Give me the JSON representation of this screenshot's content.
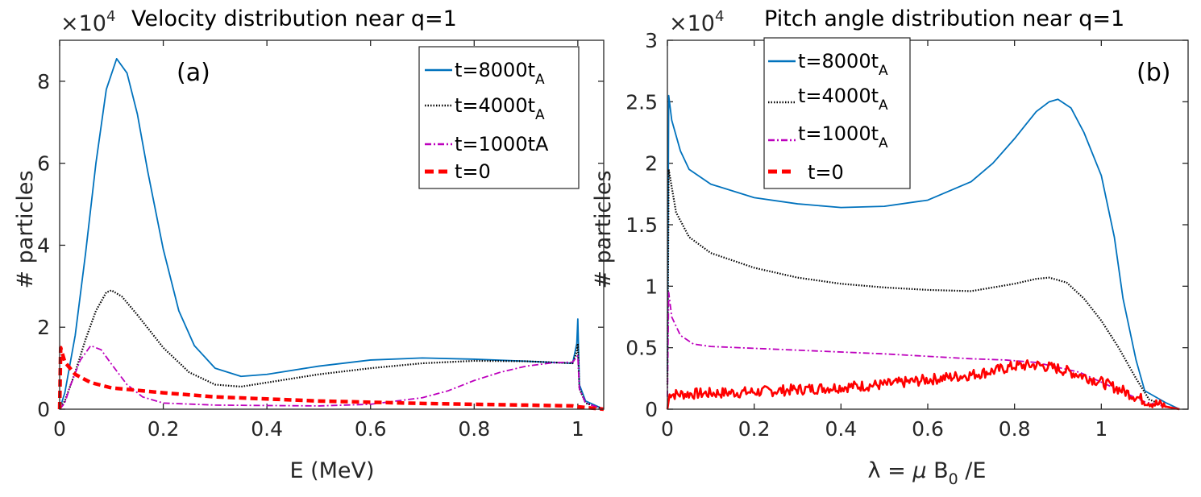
{
  "chart_data": [
    {
      "id": "a",
      "type": "line",
      "title": "Velocity distribution near q=1",
      "panel_label": "(a)",
      "multiplier": "×10",
      "multiplier_exp": "4",
      "xlabel": "E (MeV)",
      "ylabel": "# particles",
      "xlim": [
        0,
        1.05
      ],
      "ylim": [
        0,
        9
      ],
      "xticks": [
        0,
        0.2,
        0.4,
        0.6,
        0.8,
        1
      ],
      "xtick_labels": [
        "0",
        "0.2",
        "0.4",
        "0.6",
        "0.8",
        "1"
      ],
      "yticks": [
        0,
        2,
        4,
        6,
        8
      ],
      "ytick_labels": [
        "0",
        "2",
        "4",
        "6",
        "8"
      ],
      "legend_position": "top-right",
      "series": [
        {
          "name": "t=8000t",
          "sub": "A",
          "color": "#0072BD",
          "style": "solid",
          "points": [
            [
              0,
              0
            ],
            [
              0.01,
              0.4
            ],
            [
              0.03,
              1.8
            ],
            [
              0.05,
              3.8
            ],
            [
              0.07,
              6.0
            ],
            [
              0.09,
              7.8
            ],
            [
              0.11,
              8.55
            ],
            [
              0.13,
              8.2
            ],
            [
              0.15,
              7.2
            ],
            [
              0.17,
              5.8
            ],
            [
              0.2,
              3.9
            ],
            [
              0.23,
              2.4
            ],
            [
              0.26,
              1.55
            ],
            [
              0.3,
              1.0
            ],
            [
              0.35,
              0.8
            ],
            [
              0.4,
              0.85
            ],
            [
              0.5,
              1.05
            ],
            [
              0.6,
              1.2
            ],
            [
              0.7,
              1.25
            ],
            [
              0.8,
              1.22
            ],
            [
              0.9,
              1.17
            ],
            [
              0.99,
              1.12
            ],
            [
              0.998,
              1.6
            ],
            [
              1.0,
              2.2
            ],
            [
              1.003,
              0.6
            ],
            [
              1.015,
              0.2
            ],
            [
              1.05,
              0
            ]
          ]
        },
        {
          "name": "t=4000t",
          "sub": "A",
          "color": "#000000",
          "style": "dotted",
          "points": [
            [
              0,
              0
            ],
            [
              0.01,
              0.2
            ],
            [
              0.03,
              0.9
            ],
            [
              0.05,
              1.7
            ],
            [
              0.07,
              2.4
            ],
            [
              0.09,
              2.85
            ],
            [
              0.1,
              2.9
            ],
            [
              0.12,
              2.75
            ],
            [
              0.15,
              2.3
            ],
            [
              0.2,
              1.5
            ],
            [
              0.25,
              0.9
            ],
            [
              0.3,
              0.6
            ],
            [
              0.35,
              0.55
            ],
            [
              0.4,
              0.65
            ],
            [
              0.5,
              0.85
            ],
            [
              0.6,
              1.0
            ],
            [
              0.7,
              1.12
            ],
            [
              0.8,
              1.18
            ],
            [
              0.9,
              1.17
            ],
            [
              0.99,
              1.12
            ],
            [
              0.998,
              1.4
            ],
            [
              1.0,
              1.6
            ],
            [
              1.003,
              0.5
            ],
            [
              1.015,
              0.15
            ],
            [
              1.05,
              0
            ]
          ]
        },
        {
          "name": "t=1000tA",
          "sub": "",
          "color": "#BD00BD",
          "style": "dashdot",
          "points": [
            [
              0,
              0
            ],
            [
              0.01,
              0.15
            ],
            [
              0.02,
              0.55
            ],
            [
              0.04,
              1.2
            ],
            [
              0.06,
              1.55
            ],
            [
              0.08,
              1.45
            ],
            [
              0.1,
              1.1
            ],
            [
              0.13,
              0.6
            ],
            [
              0.16,
              0.3
            ],
            [
              0.2,
              0.15
            ],
            [
              0.3,
              0.1
            ],
            [
              0.5,
              0.08
            ],
            [
              0.6,
              0.12
            ],
            [
              0.7,
              0.28
            ],
            [
              0.75,
              0.45
            ],
            [
              0.8,
              0.7
            ],
            [
              0.85,
              0.9
            ],
            [
              0.9,
              1.05
            ],
            [
              0.95,
              1.13
            ],
            [
              0.99,
              1.15
            ],
            [
              1.0,
              1.3
            ],
            [
              1.003,
              0.5
            ],
            [
              1.015,
              0.15
            ],
            [
              1.05,
              0
            ]
          ]
        },
        {
          "name": "t=0",
          "sub": "",
          "color": "#FF0000",
          "style": "dashed",
          "points": [
            [
              0,
              0
            ],
            [
              0.002,
              1.5
            ],
            [
              0.01,
              1.15
            ],
            [
              0.03,
              0.85
            ],
            [
              0.06,
              0.65
            ],
            [
              0.1,
              0.52
            ],
            [
              0.2,
              0.4
            ],
            [
              0.3,
              0.3
            ],
            [
              0.5,
              0.2
            ],
            [
              0.7,
              0.14
            ],
            [
              0.9,
              0.1
            ],
            [
              0.99,
              0.08
            ],
            [
              1.0,
              0.06
            ],
            [
              1.05,
              0
            ]
          ]
        }
      ]
    },
    {
      "id": "b",
      "type": "line",
      "title": "Pitch angle distribution near q=1",
      "panel_label": "(b)",
      "multiplier": "×10",
      "multiplier_exp": "4",
      "xlabel_pre": "λ = ",
      "xlabel_mu": "μ",
      "xlabel_mid": " B",
      "xlabel_sub": "0",
      "xlabel_post": " /E",
      "ylabel": "# particles",
      "xlim": [
        0,
        1.2
      ],
      "ylim": [
        0,
        3
      ],
      "xticks": [
        0,
        0.2,
        0.4,
        0.6,
        0.8,
        1
      ],
      "xtick_labels": [
        "0",
        "0.2",
        "0.4",
        "0.6",
        "0.8",
        "1"
      ],
      "yticks": [
        0,
        0.5,
        1,
        1.5,
        2,
        2.5,
        3
      ],
      "ytick_labels": [
        "0",
        "0.5",
        "1",
        "1.5",
        "2",
        "2.5",
        "3"
      ],
      "legend_position": "top-left",
      "series": [
        {
          "name": "t=8000t",
          "sub": "A",
          "color": "#0072BD",
          "style": "solid",
          "points": [
            [
              0,
              0.3
            ],
            [
              0.003,
              2.55
            ],
            [
              0.01,
              2.35
            ],
            [
              0.03,
              2.1
            ],
            [
              0.05,
              1.95
            ],
            [
              0.1,
              1.83
            ],
            [
              0.2,
              1.72
            ],
            [
              0.3,
              1.67
            ],
            [
              0.4,
              1.64
            ],
            [
              0.5,
              1.65
            ],
            [
              0.6,
              1.7
            ],
            [
              0.7,
              1.85
            ],
            [
              0.75,
              2.0
            ],
            [
              0.8,
              2.2
            ],
            [
              0.85,
              2.42
            ],
            [
              0.88,
              2.5
            ],
            [
              0.9,
              2.52
            ],
            [
              0.93,
              2.45
            ],
            [
              0.96,
              2.25
            ],
            [
              1.0,
              1.9
            ],
            [
              1.03,
              1.4
            ],
            [
              1.05,
              0.9
            ],
            [
              1.08,
              0.4
            ],
            [
              1.1,
              0.15
            ],
            [
              1.15,
              0.05
            ],
            [
              1.18,
              0
            ]
          ]
        },
        {
          "name": "t=4000t",
          "sub": "A",
          "color": "#000000",
          "style": "dotted",
          "points": [
            [
              0,
              0.2
            ],
            [
              0.003,
              1.95
            ],
            [
              0.02,
              1.6
            ],
            [
              0.05,
              1.4
            ],
            [
              0.1,
              1.27
            ],
            [
              0.2,
              1.15
            ],
            [
              0.3,
              1.07
            ],
            [
              0.4,
              1.02
            ],
            [
              0.5,
              0.99
            ],
            [
              0.6,
              0.97
            ],
            [
              0.7,
              0.96
            ],
            [
              0.8,
              1.02
            ],
            [
              0.85,
              1.06
            ],
            [
              0.88,
              1.07
            ],
            [
              0.92,
              1.03
            ],
            [
              0.96,
              0.9
            ],
            [
              1.0,
              0.72
            ],
            [
              1.04,
              0.5
            ],
            [
              1.08,
              0.25
            ],
            [
              1.11,
              0.08
            ],
            [
              1.15,
              0.02
            ],
            [
              1.18,
              0
            ]
          ]
        },
        {
          "name": "t=1000t",
          "sub": "A",
          "color": "#BD00BD",
          "style": "dashdot",
          "points": [
            [
              0,
              0.1
            ],
            [
              0.003,
              0.95
            ],
            [
              0.01,
              0.75
            ],
            [
              0.03,
              0.6
            ],
            [
              0.06,
              0.53
            ],
            [
              0.1,
              0.51
            ],
            [
              0.3,
              0.48
            ],
            [
              0.5,
              0.45
            ],
            [
              0.6,
              0.43
            ],
            [
              0.7,
              0.41
            ],
            [
              0.78,
              0.4
            ],
            [
              0.85,
              0.38
            ],
            [
              0.95,
              0.3
            ],
            [
              1.0,
              0.22
            ],
            [
              1.05,
              0.14
            ],
            [
              1.1,
              0.06
            ],
            [
              1.15,
              0.02
            ],
            [
              1.18,
              0
            ]
          ]
        },
        {
          "name": "t=0",
          "sub": "",
          "color": "#FF0000",
          "style": "noisy",
          "points": [
            [
              0,
              0.0
            ],
            [
              0.005,
              0.12
            ],
            [
              0.1,
              0.13
            ],
            [
              0.2,
              0.14
            ],
            [
              0.3,
              0.16
            ],
            [
              0.4,
              0.18
            ],
            [
              0.5,
              0.2
            ],
            [
              0.6,
              0.24
            ],
            [
              0.7,
              0.28
            ],
            [
              0.75,
              0.31
            ],
            [
              0.8,
              0.35
            ],
            [
              0.85,
              0.36
            ],
            [
              0.9,
              0.33
            ],
            [
              0.95,
              0.28
            ],
            [
              1.0,
              0.22
            ],
            [
              1.05,
              0.15
            ],
            [
              1.1,
              0.07
            ],
            [
              1.15,
              0.02
            ],
            [
              1.18,
              0
            ]
          ]
        }
      ]
    }
  ]
}
